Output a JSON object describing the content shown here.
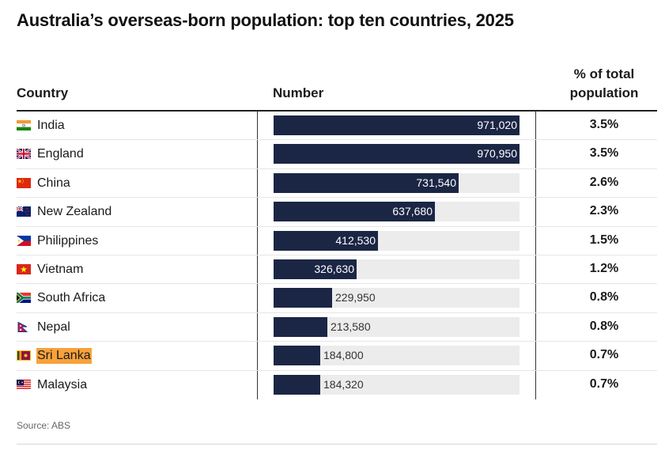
{
  "title": "Australia’s overseas-born population: top ten countries, 2025",
  "headers": {
    "country": "Country",
    "number": "Number",
    "pct_line1": "% of total",
    "pct_line2": "population"
  },
  "source": "Source: ABS",
  "colors": {
    "bar": "#1b2645",
    "track": "#ececec",
    "highlight": "#f7a23b"
  },
  "chart_data": {
    "type": "bar",
    "title": "Australia’s overseas-born population: top ten countries, 2025",
    "categories": [
      "India",
      "England",
      "China",
      "New Zealand",
      "Philippines",
      "Vietnam",
      "South Africa",
      "Nepal",
      "Sri Lanka",
      "Malaysia"
    ],
    "series": [
      {
        "name": "Number",
        "values": [
          971020,
          970950,
          731540,
          637680,
          412530,
          326630,
          229950,
          213580,
          184800,
          184320
        ]
      }
    ],
    "value_labels": [
      "971,020",
      "970,950",
      "731,540",
      "637,680",
      "412,530",
      "326,630",
      "229,950",
      "213,580",
      "184,800",
      "184,320"
    ],
    "pct_of_total": [
      "3.5%",
      "3.5%",
      "2.6%",
      "2.3%",
      "1.5%",
      "1.2%",
      "0.8%",
      "0.8%",
      "0.7%",
      "0.7%"
    ],
    "flags": [
      "india-flag-icon",
      "england-flag-icon",
      "china-flag-icon",
      "new-zealand-flag-icon",
      "philippines-flag-icon",
      "vietnam-flag-icon",
      "south-africa-flag-icon",
      "nepal-flag-icon",
      "sri-lanka-flag-icon",
      "malaysia-flag-icon"
    ],
    "highlighted": "Sri Lanka",
    "xlim": [
      0,
      971020
    ],
    "orientation": "horizontal"
  }
}
